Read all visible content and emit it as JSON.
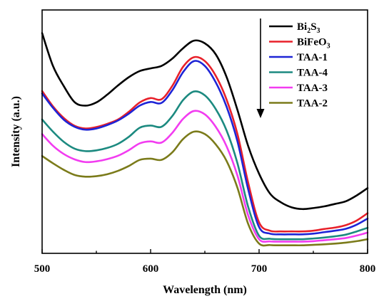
{
  "chart_data": {
    "type": "line",
    "xlabel": "Wavelength (nm)",
    "ylabel": "Intensity (a.u.)",
    "xlim": [
      500,
      800
    ],
    "ylim": [
      0,
      1
    ],
    "x_ticks": [
      "500",
      "600",
      "700",
      "800"
    ],
    "y_ticks_labeled": false,
    "grid": false,
    "legend_position": "top-right",
    "annotation": "downward arrow beside legend indicating decreasing intensity order",
    "x": [
      500,
      510,
      520,
      530,
      540,
      550,
      560,
      570,
      580,
      590,
      600,
      610,
      620,
      630,
      640,
      650,
      660,
      670,
      680,
      690,
      700,
      710,
      720,
      730,
      740,
      750,
      760,
      770,
      780,
      790,
      800
    ],
    "series": [
      {
        "name": "Bi2S3",
        "legend_main": "Bi",
        "legend_sub1": "2",
        "legend_mid": "S",
        "legend_sub2": "3",
        "color": "#000000",
        "values": [
          0.905,
          0.77,
          0.687,
          0.621,
          0.607,
          0.62,
          0.652,
          0.69,
          0.724,
          0.749,
          0.76,
          0.77,
          0.8,
          0.843,
          0.874,
          0.863,
          0.818,
          0.725,
          0.59,
          0.44,
          0.327,
          0.246,
          0.21,
          0.189,
          0.182,
          0.186,
          0.193,
          0.203,
          0.214,
          0.238,
          0.268
        ]
      },
      {
        "name": "BiFeO3",
        "legend_main": "BiFeO",
        "legend_sub1": "3",
        "legend_mid": "",
        "legend_sub2": "",
        "color": "#e8202a",
        "values": [
          0.667,
          0.604,
          0.556,
          0.524,
          0.513,
          0.519,
          0.532,
          0.55,
          0.582,
          0.62,
          0.638,
          0.633,
          0.688,
          0.767,
          0.806,
          0.79,
          0.73,
          0.632,
          0.491,
          0.289,
          0.127,
          0.093,
          0.09,
          0.09,
          0.09,
          0.093,
          0.1,
          0.106,
          0.116,
          0.135,
          0.165
        ]
      },
      {
        "name": "TAA-1",
        "legend_main": "TAA-1",
        "legend_sub1": "",
        "legend_mid": "",
        "legend_sub2": "",
        "color": "#1e24d6",
        "values": [
          0.657,
          0.598,
          0.549,
          0.52,
          0.508,
          0.513,
          0.527,
          0.546,
          0.574,
          0.607,
          0.622,
          0.618,
          0.67,
          0.745,
          0.79,
          0.77,
          0.703,
          0.603,
          0.461,
          0.262,
          0.108,
          0.081,
          0.078,
          0.078,
          0.078,
          0.081,
          0.087,
          0.093,
          0.101,
          0.118,
          0.143
        ]
      },
      {
        "name": "TAA-4",
        "legend_main": "TAA-4",
        "legend_sub1": "",
        "legend_mid": "",
        "legend_sub2": "",
        "color": "#1c8a80",
        "values": [
          0.55,
          0.5,
          0.458,
          0.43,
          0.42,
          0.423,
          0.433,
          0.45,
          0.479,
          0.516,
          0.525,
          0.52,
          0.564,
          0.63,
          0.665,
          0.649,
          0.593,
          0.505,
          0.371,
          0.19,
          0.072,
          0.06,
          0.058,
          0.058,
          0.058,
          0.061,
          0.065,
          0.07,
          0.077,
          0.09,
          0.105
        ]
      },
      {
        "name": "TAA-3",
        "legend_main": "TAA-3",
        "legend_sub1": "",
        "legend_mid": "",
        "legend_sub2": "",
        "color": "#f23cf0",
        "values": [
          0.49,
          0.442,
          0.408,
          0.386,
          0.375,
          0.378,
          0.387,
          0.401,
          0.424,
          0.452,
          0.46,
          0.455,
          0.495,
          0.553,
          0.585,
          0.571,
          0.52,
          0.44,
          0.32,
          0.155,
          0.058,
          0.049,
          0.048,
          0.048,
          0.048,
          0.05,
          0.054,
          0.058,
          0.063,
          0.073,
          0.085
        ]
      },
      {
        "name": "TAA-2",
        "legend_main": "TAA-2",
        "legend_sub1": "",
        "legend_mid": "",
        "legend_sub2": "",
        "color": "#7b7b1a",
        "values": [
          0.4,
          0.37,
          0.343,
          0.322,
          0.315,
          0.317,
          0.325,
          0.339,
          0.359,
          0.384,
          0.389,
          0.384,
          0.415,
          0.47,
          0.5,
          0.49,
          0.448,
          0.38,
          0.27,
          0.12,
          0.04,
          0.034,
          0.033,
          0.033,
          0.033,
          0.035,
          0.037,
          0.04,
          0.044,
          0.05,
          0.058
        ]
      }
    ]
  }
}
